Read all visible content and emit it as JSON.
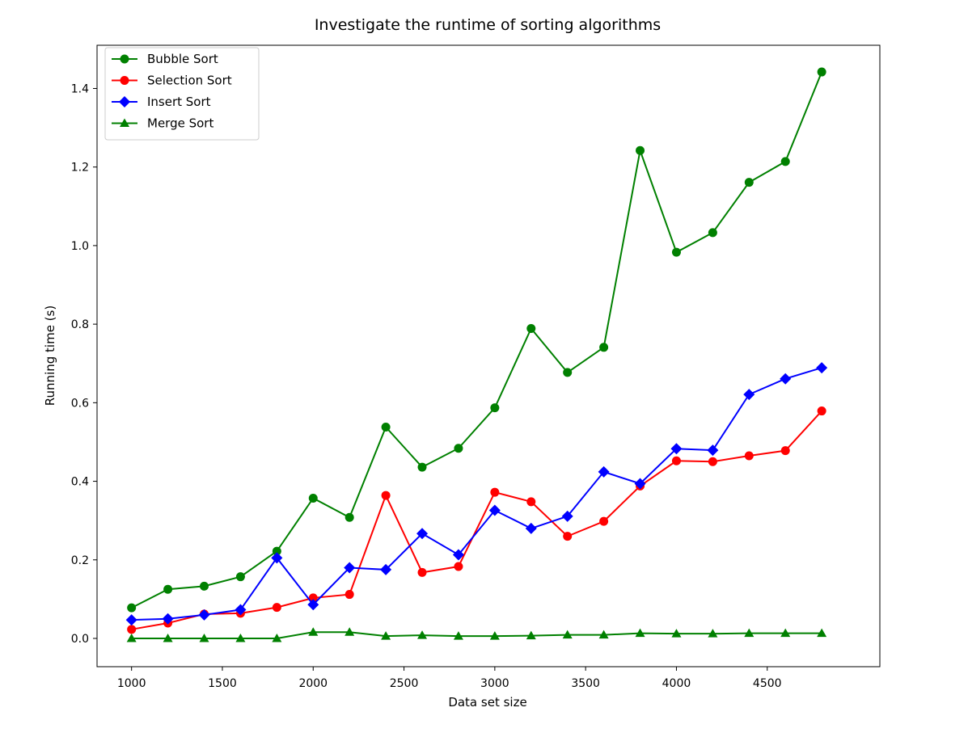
{
  "chart_data": {
    "type": "line",
    "title": "Investigate the runtime of sorting algorithms",
    "xlabel": "Data set size",
    "ylabel": "Running time (s)",
    "x": [
      1000,
      1200,
      1400,
      1600,
      1800,
      2000,
      2200,
      2400,
      2600,
      2800,
      3000,
      3200,
      3400,
      3600,
      3800,
      4000,
      4200,
      4400,
      4600,
      4800
    ],
    "xlim": [
      810,
      5120
    ],
    "ylim": [
      -0.072,
      1.51
    ],
    "xticks": [
      1000,
      1500,
      2000,
      2500,
      3000,
      3500,
      4000,
      4500
    ],
    "xtick_labels": [
      "1000",
      "1500",
      "2000",
      "2500",
      "3000",
      "3500",
      "4000",
      "4500"
    ],
    "yticks": [
      0.0,
      0.2,
      0.4,
      0.6,
      0.8,
      1.0,
      1.2,
      1.4
    ],
    "ytick_labels": [
      "0.0",
      "0.2",
      "0.4",
      "0.6",
      "0.8",
      "1.0",
      "1.2",
      "1.4"
    ],
    "grid": false,
    "legend_position": "top-left",
    "series": [
      {
        "name": "Bubble Sort",
        "color": "#008000",
        "marker": "circle",
        "values": [
          0.078,
          0.125,
          0.133,
          0.157,
          0.222,
          0.357,
          0.308,
          0.538,
          0.436,
          0.484,
          0.587,
          0.789,
          0.677,
          0.741,
          1.242,
          0.983,
          1.033,
          1.161,
          1.214,
          1.442
        ]
      },
      {
        "name": "Selection Sort",
        "color": "#ff0000",
        "marker": "circle",
        "values": [
          0.023,
          0.039,
          0.062,
          0.064,
          0.079,
          0.103,
          0.112,
          0.364,
          0.168,
          0.183,
          0.372,
          0.348,
          0.26,
          0.298,
          0.388,
          0.452,
          0.45,
          0.465,
          0.478,
          0.579
        ]
      },
      {
        "name": "Insert Sort",
        "color": "#0000ff",
        "marker": "diamond",
        "values": [
          0.047,
          0.05,
          0.06,
          0.073,
          0.205,
          0.086,
          0.18,
          0.175,
          0.267,
          0.213,
          0.326,
          0.28,
          0.311,
          0.424,
          0.394,
          0.483,
          0.479,
          0.621,
          0.661,
          0.689
        ]
      },
      {
        "name": "Merge Sort",
        "color": "#008000",
        "marker": "triangle",
        "values": [
          0.0,
          0.0,
          0.0,
          0.0,
          0.0,
          0.016,
          0.016,
          0.006,
          0.008,
          0.006,
          0.006,
          0.007,
          0.009,
          0.009,
          0.013,
          0.012,
          0.012,
          0.013,
          0.013,
          0.013
        ]
      }
    ]
  }
}
